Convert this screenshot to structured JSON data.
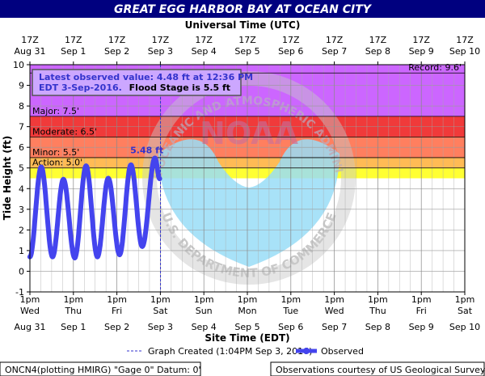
{
  "colors": {
    "title_bar": "#00007f",
    "record_band": "#cc66ff",
    "major_band": "#f03a3a",
    "moderate_band": "#ff7f5f",
    "minor_band": "#ffbb55",
    "action_band": "#ffff33",
    "observed_line": "#4444ee",
    "latest_text": "#3333cc",
    "emblem_blue": "#99ddf7",
    "emblem_text": "#bfbfbf",
    "box_bg": "#cca7ff"
  },
  "header": {
    "title": "GREAT EGG HARBOR BAY AT OCEAN CITY",
    "top_axis_title": "Universal Time (UTC)"
  },
  "footer": {
    "legend_created": "Graph Created (1:04PM Sep 3, 2016)",
    "legend_observed": "Observed",
    "station_info": "ONCN4(plotting HMIRG) \"Gage 0\" Datum: 0'",
    "credit": "Observations courtesy of US Geological Survey"
  },
  "latest_box": {
    "line1": "Latest observed value: 4.48 ft at 12:36 PM",
    "line2_blue": "EDT 3-Sep-2016.",
    "line2_black": "Flood Stage is 5.5 ft"
  },
  "emblem": {
    "noaa_label": "NOAA",
    "ring_text": "NATIONAL OCEANIC AND ATMOSPHERIC ADMINISTRATION",
    "dept_text": "U.S. DEPARTMENT OF COMMERCE"
  },
  "chart_data": {
    "type": "line",
    "title": "GREAT EGG HARBOR BAY AT OCEAN CITY",
    "xlabel": "Site Time (EDT)",
    "ylabel": "Tide Height (ft)",
    "top_axis_label": "Universal Time (UTC)",
    "xlim": [
      "2016-08-31 13:00",
      "2016-09-10 13:00"
    ],
    "ylim": [
      -1,
      10
    ],
    "yticks": [
      -1,
      0,
      1,
      2,
      3,
      4,
      5,
      6,
      7,
      8,
      9,
      10
    ],
    "grid": true,
    "bottom_tick_labels": [
      {
        "time": "1pm",
        "day": "Wed",
        "date": "Aug 31"
      },
      {
        "time": "1pm",
        "day": "Thu",
        "date": "Sep 1"
      },
      {
        "time": "1pm",
        "day": "Fri",
        "date": "Sep 2"
      },
      {
        "time": "1pm",
        "day": "Sat",
        "date": "Sep 3"
      },
      {
        "time": "1pm",
        "day": "Sun",
        "date": "Sep 4"
      },
      {
        "time": "1pm",
        "day": "Mon",
        "date": "Sep 5"
      },
      {
        "time": "1pm",
        "day": "Tue",
        "date": "Sep 6"
      },
      {
        "time": "1pm",
        "day": "Wed",
        "date": "Sep 7"
      },
      {
        "time": "1pm",
        "day": "Thu",
        "date": "Sep 8"
      },
      {
        "time": "1pm",
        "day": "Fri",
        "date": "Sep 9"
      },
      {
        "time": "1pm",
        "day": "Sat",
        "date": "Sep 10"
      }
    ],
    "top_tick_labels": [
      {
        "hour": "17Z",
        "date": "Aug 31"
      },
      {
        "hour": "17Z",
        "date": "Sep 1"
      },
      {
        "hour": "17Z",
        "date": "Sep 2"
      },
      {
        "hour": "17Z",
        "date": "Sep 3"
      },
      {
        "hour": "17Z",
        "date": "Sep 4"
      },
      {
        "hour": "17Z",
        "date": "Sep 5"
      },
      {
        "hour": "17Z",
        "date": "Sep 6"
      },
      {
        "hour": "17Z",
        "date": "Sep 7"
      },
      {
        "hour": "17Z",
        "date": "Sep 8"
      },
      {
        "hour": "17Z",
        "date": "Sep 9"
      },
      {
        "hour": "17Z",
        "date": "Sep 10"
      }
    ],
    "flood_categories": [
      {
        "label": "Record: 9.6'",
        "stage": 9.6
      },
      {
        "label": "Major: 7.5'",
        "stage": 7.5
      },
      {
        "label": "Moderate: 6.5'",
        "stage": 6.5
      },
      {
        "label": "Minor: 5.5'",
        "stage": 5.5
      },
      {
        "label": "Action: 5.0'",
        "stage": 5.0
      }
    ],
    "peak_label": {
      "text": "5.48 ft",
      "x": "2016-09-03 10:00",
      "y": 5.48
    },
    "graph_created": "2016-09-03 13:04",
    "series": [
      {
        "name": "Observed",
        "points": [
          [
            "2016-08-31 13:00",
            0.7
          ],
          [
            "2016-08-31 19:15",
            5.05
          ],
          [
            "2016-09-01 01:30",
            0.7
          ],
          [
            "2016-09-01 07:30",
            4.45
          ],
          [
            "2016-09-01 13:45",
            0.65
          ],
          [
            "2016-09-01 20:00",
            5.1
          ],
          [
            "2016-09-02 02:15",
            0.7
          ],
          [
            "2016-09-02 08:15",
            4.5
          ],
          [
            "2016-09-02 14:30",
            0.8
          ],
          [
            "2016-09-02 20:45",
            5.15
          ],
          [
            "2016-09-03 03:00",
            1.2
          ],
          [
            "2016-09-03 10:00",
            5.48
          ],
          [
            "2016-09-03 12:36",
            4.48
          ]
        ]
      }
    ]
  }
}
